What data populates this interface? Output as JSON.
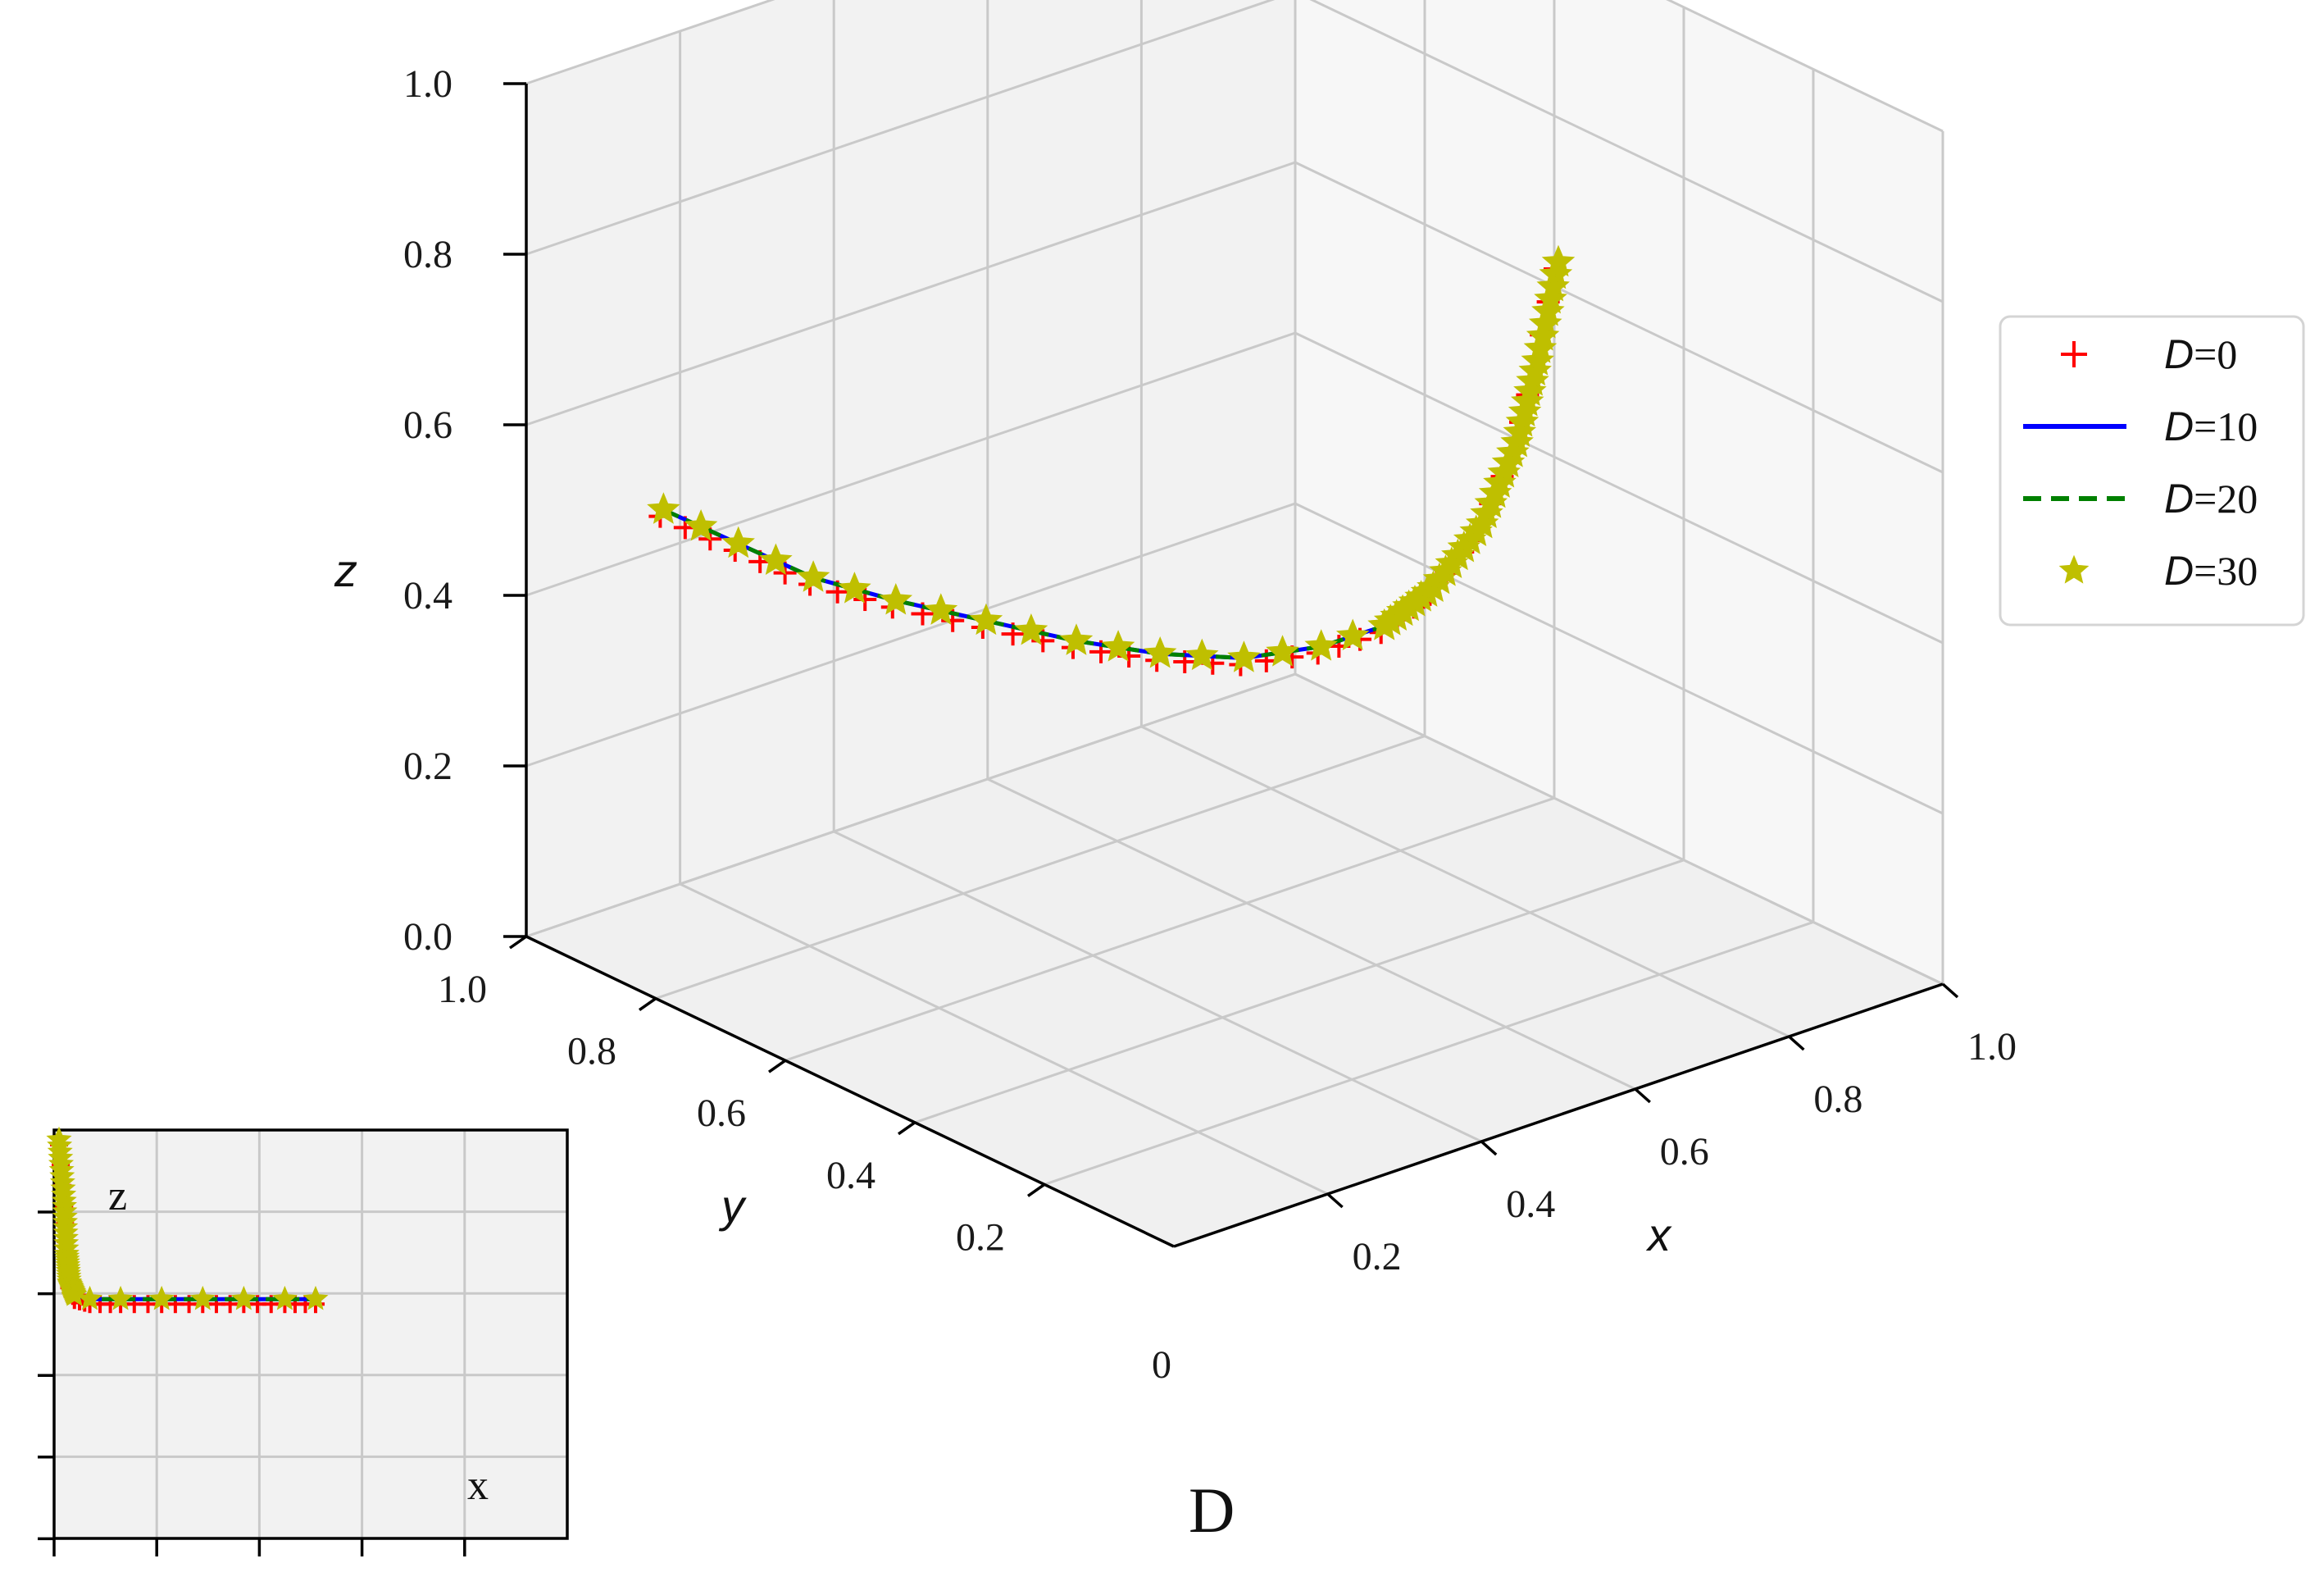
{
  "chart_data": [
    {
      "type": "line",
      "title": "",
      "xlabel": "x",
      "ylabel": "y",
      "zlabel": "z",
      "xlim": [
        0,
        1
      ],
      "ylim": [
        0,
        1
      ],
      "zlim": [
        0,
        1
      ],
      "x_ticks": [
        "0.2",
        "0.4",
        "0.6",
        "0.8",
        "1.0"
      ],
      "y_ticks": [
        "0.2",
        "0.4",
        "0.6",
        "0.8",
        "1.0"
      ],
      "z_ticks": [
        "0.0",
        "0.2",
        "0.4",
        "0.6",
        "0.8",
        "1.0"
      ],
      "origin_label": "0",
      "grid": true,
      "legend_position": "right",
      "series": [
        {
          "name": "D=0",
          "legend_var": "D",
          "legend_val": "=0",
          "style": "plus-markers",
          "color": "#ff0000"
        },
        {
          "name": "D=10",
          "legend_var": "D",
          "legend_val": "=10",
          "style": "solid-line",
          "color": "#0000ff"
        },
        {
          "name": "D=20",
          "legend_var": "D",
          "legend_val": "=20",
          "style": "dashed-line",
          "color": "#008000"
        },
        {
          "name": "D=30",
          "legend_var": "D",
          "legend_val": "=30",
          "style": "star-markers",
          "color": "#bfbf00"
        }
      ],
      "curve_points": [
        {
          "x": 0.5,
          "y": 0.0,
          "z": 1.0
        },
        {
          "x": 0.49,
          "y": 0.02,
          "z": 0.88
        },
        {
          "x": 0.48,
          "y": 0.04,
          "z": 0.78
        },
        {
          "x": 0.46,
          "y": 0.07,
          "z": 0.68
        },
        {
          "x": 0.43,
          "y": 0.11,
          "z": 0.6
        },
        {
          "x": 0.4,
          "y": 0.15,
          "z": 0.55
        },
        {
          "x": 0.36,
          "y": 0.2,
          "z": 0.52
        },
        {
          "x": 0.31,
          "y": 0.26,
          "z": 0.5
        },
        {
          "x": 0.26,
          "y": 0.33,
          "z": 0.495
        },
        {
          "x": 0.21,
          "y": 0.4,
          "z": 0.5
        },
        {
          "x": 0.16,
          "y": 0.48,
          "z": 0.51
        },
        {
          "x": 0.11,
          "y": 0.56,
          "z": 0.52
        },
        {
          "x": 0.07,
          "y": 0.64,
          "z": 0.53
        },
        {
          "x": 0.04,
          "y": 0.72,
          "z": 0.55
        },
        {
          "x": 0.01,
          "y": 0.8,
          "z": 0.57
        }
      ]
    },
    {
      "type": "line",
      "xlabel": "x",
      "zlabel": "z",
      "xlim": [
        0,
        1
      ],
      "zlim": [
        0,
        1
      ],
      "grid": true,
      "curve_points": [
        {
          "x": 0.0,
          "z": 1.0
        },
        {
          "x": 0.01,
          "z": 0.85
        },
        {
          "x": 0.015,
          "z": 0.72
        },
        {
          "x": 0.02,
          "z": 0.65
        },
        {
          "x": 0.03,
          "z": 0.62
        },
        {
          "x": 0.06,
          "z": 0.61
        },
        {
          "x": 0.12,
          "z": 0.61
        },
        {
          "x": 0.2,
          "z": 0.61
        },
        {
          "x": 0.28,
          "z": 0.61
        },
        {
          "x": 0.36,
          "z": 0.61
        },
        {
          "x": 0.44,
          "z": 0.61
        },
        {
          "x": 0.5,
          "z": 0.61
        }
      ]
    }
  ],
  "caption": "D"
}
